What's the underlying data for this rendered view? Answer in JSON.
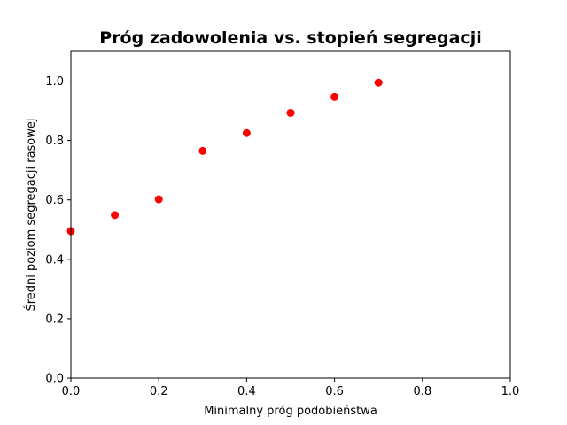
{
  "chart_data": {
    "type": "scatter",
    "title": "Próg zadowolenia vs. stopień segregacji",
    "xlabel": "Minimalny próg podobieństwa",
    "ylabel": "Średni poziom segregacji rasowej",
    "xlim": [
      0.0,
      1.0
    ],
    "ylim": [
      0.0,
      1.1
    ],
    "xticks": [
      "0.0",
      "0.2",
      "0.4",
      "0.6",
      "0.8",
      "1.0"
    ],
    "yticks": [
      "0.0",
      "0.2",
      "0.4",
      "0.6",
      "0.8",
      "1.0"
    ],
    "grid": false,
    "marker_color": "#ff0000",
    "x": [
      0.0,
      0.1,
      0.2,
      0.3,
      0.4,
      0.5,
      0.6,
      0.7
    ],
    "y": [
      0.495,
      0.549,
      0.602,
      0.765,
      0.825,
      0.893,
      0.947,
      0.995
    ]
  }
}
